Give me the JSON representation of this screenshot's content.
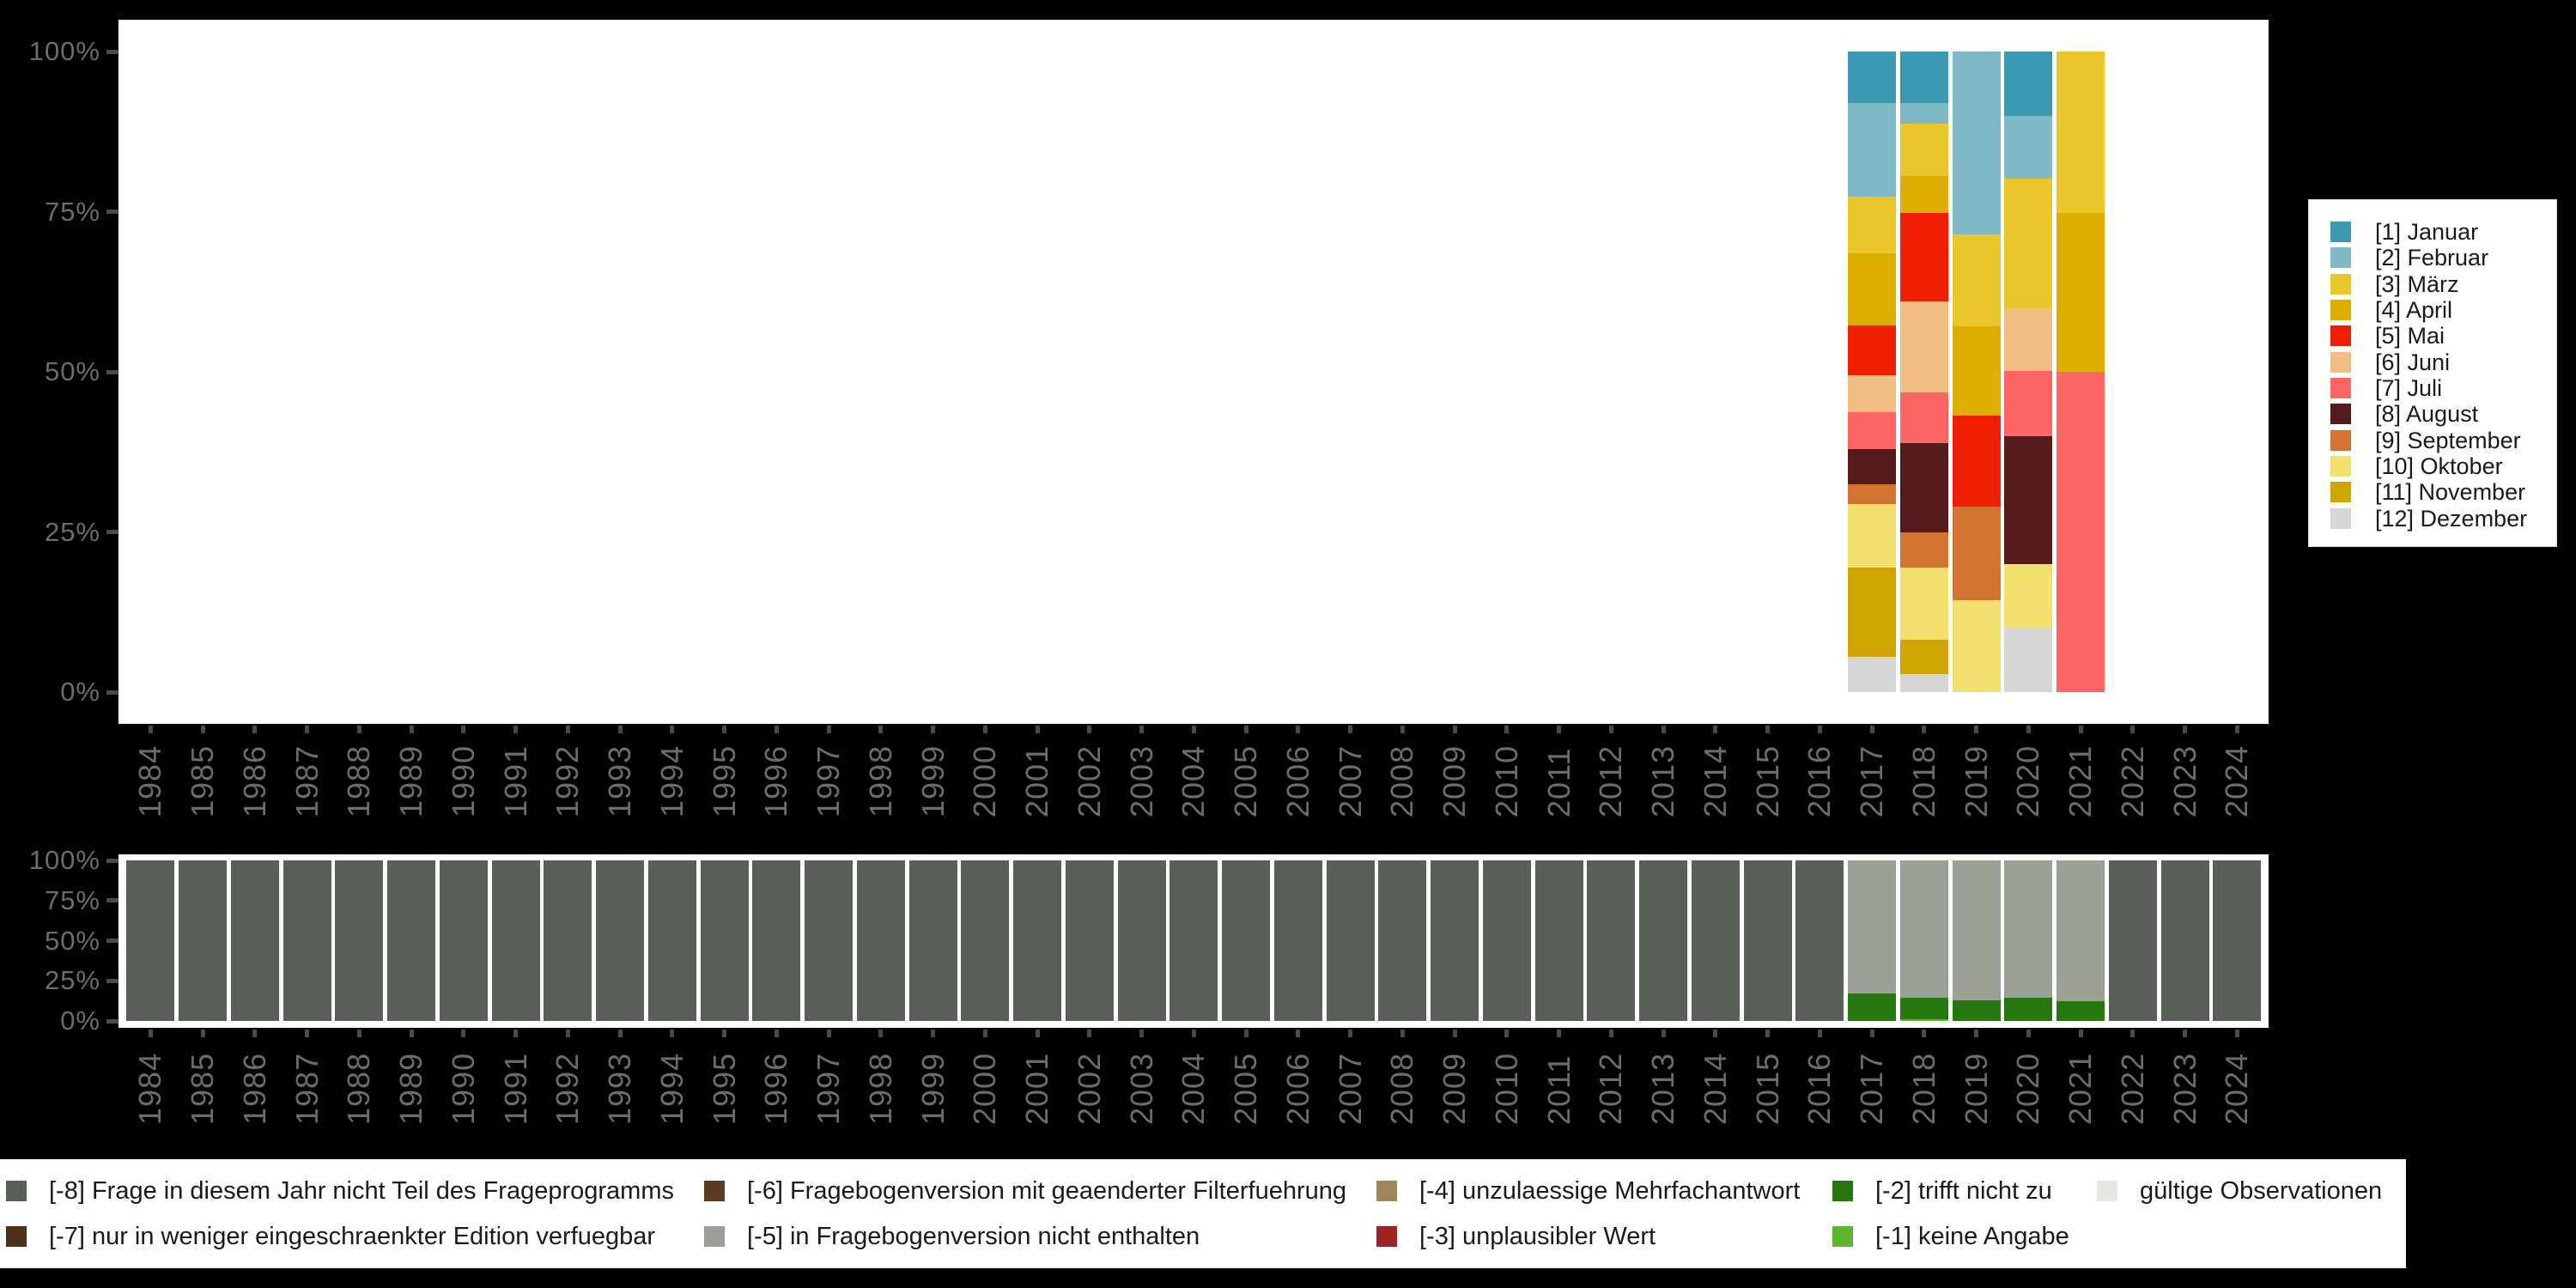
{
  "chart_data": [
    {
      "id": "month-distribution",
      "type": "bar",
      "stacked": true,
      "unit": "percent",
      "title": "",
      "xlabel": "",
      "ylabel": "",
      "ylim": [
        0,
        100
      ],
      "grid": false,
      "y_tick_labels": [
        "0%",
        "25%",
        "50%",
        "75%",
        "100%"
      ],
      "categories": [
        "1984",
        "1985",
        "1986",
        "1987",
        "1988",
        "1989",
        "1990",
        "1991",
        "1992",
        "1993",
        "1994",
        "1995",
        "1996",
        "1997",
        "1998",
        "1999",
        "2000",
        "2001",
        "2002",
        "2003",
        "2004",
        "2005",
        "2006",
        "2007",
        "2008",
        "2009",
        "2010",
        "2011",
        "2012",
        "2013",
        "2014",
        "2015",
        "2016",
        "2017",
        "2018",
        "2019",
        "2020",
        "2021",
        "2022",
        "2023",
        "2024"
      ],
      "legend_position": "right",
      "legend": [
        {
          "label": "[1] Januar",
          "color": "#3B99B2"
        },
        {
          "label": "[2] Februar",
          "color": "#7FB9C7"
        },
        {
          "label": "[3] März",
          "color": "#E8C62C"
        },
        {
          "label": "[4] April",
          "color": "#DDAE00"
        },
        {
          "label": "[5] Mai",
          "color": "#F01E00"
        },
        {
          "label": "[6] Juni",
          "color": "#F0BD82"
        },
        {
          "label": "[7] Juli",
          "color": "#FE6663"
        },
        {
          "label": "[8] August",
          "color": "#551A1C"
        },
        {
          "label": "[9] September",
          "color": "#D27430"
        },
        {
          "label": "[10] Oktober",
          "color": "#F2E06E"
        },
        {
          "label": "[11] November",
          "color": "#CFA600"
        },
        {
          "label": "[12] Dezember",
          "color": "#D5D5D5"
        }
      ],
      "bars": [
        {
          "year": "2017",
          "segments": [
            [
              "[1] Januar",
              8.0
            ],
            [
              "[2] Februar",
              14.7
            ],
            [
              "[3] März",
              8.8
            ],
            [
              "[4] April",
              11.3
            ],
            [
              "[5] Mai",
              7.7
            ],
            [
              "[6] Juni",
              5.8
            ],
            [
              "[7] Juli",
              5.8
            ],
            [
              "[8] August",
              5.4
            ],
            [
              "[9] September",
              3.1
            ],
            [
              "[10] Oktober",
              10.0
            ],
            [
              "[11] November",
              13.9
            ],
            [
              "[12] Dezember",
              5.5
            ]
          ]
        },
        {
          "year": "2018",
          "segments": [
            [
              "[1] Januar",
              8.1
            ],
            [
              "[2] Februar",
              3.2
            ],
            [
              "[3] März",
              8.1
            ],
            [
              "[4] April",
              5.8
            ],
            [
              "[5] Mai",
              13.8
            ],
            [
              "[6] Juni",
              14.2
            ],
            [
              "[7] Juli",
              7.9
            ],
            [
              "[8] August",
              14.0
            ],
            [
              "[9] September",
              5.4
            ],
            [
              "[10] Oktober",
              11.3
            ],
            [
              "[11] November",
              5.4
            ],
            [
              "[12] Dezember",
              2.8
            ]
          ]
        },
        {
          "year": "2019",
          "segments": [
            [
              "[2] Februar",
              28.5
            ],
            [
              "[3] März",
              14.4
            ],
            [
              "[4] April",
              14.0
            ],
            [
              "[5] Mai",
              14.2
            ],
            [
              "[9] September",
              14.5
            ],
            [
              "[10] Oktober",
              14.4
            ]
          ]
        },
        {
          "year": "2020",
          "segments": [
            [
              "[1] Januar",
              10.1
            ],
            [
              "[2] Februar",
              9.8
            ],
            [
              "[3] März",
              20.2
            ],
            [
              "[6] Juni",
              9.8
            ],
            [
              "[7] Juli",
              10.1
            ],
            [
              "[8] August",
              20.0
            ],
            [
              "[10] Oktober",
              10.1
            ],
            [
              "[12] Dezember",
              9.9
            ]
          ]
        },
        {
          "year": "2021",
          "segments": [
            [
              "[3] März",
              25.2
            ],
            [
              "[4] April",
              24.8
            ],
            [
              "[7] Juli",
              50.0
            ]
          ]
        }
      ]
    },
    {
      "id": "missing-codes",
      "type": "bar",
      "stacked": true,
      "unit": "percent",
      "title": "",
      "xlabel": "",
      "ylabel": "",
      "ylim": [
        0,
        100
      ],
      "grid": false,
      "y_tick_labels": [
        "0%",
        "25%",
        "50%",
        "75%",
        "100%"
      ],
      "categories": [
        "1984",
        "1985",
        "1986",
        "1987",
        "1988",
        "1989",
        "1990",
        "1991",
        "1992",
        "1993",
        "1994",
        "1995",
        "1996",
        "1997",
        "1998",
        "1999",
        "2000",
        "2001",
        "2002",
        "2003",
        "2004",
        "2005",
        "2006",
        "2007",
        "2008",
        "2009",
        "2010",
        "2011",
        "2012",
        "2013",
        "2014",
        "2015",
        "2016",
        "2017",
        "2018",
        "2019",
        "2020",
        "2021",
        "2022",
        "2023",
        "2024"
      ],
      "legend_position": "bottom",
      "legend": [
        {
          "row": 0,
          "col": 0,
          "code": "[-8]",
          "label": "[-8] Frage in diesem Jahr nicht Teil des Frageprogramms",
          "color": "#596058"
        },
        {
          "row": 1,
          "col": 0,
          "code": "[-7]",
          "label": "[-7] nur in weniger eingeschraenkter Edition verfuegbar",
          "color": "#4D3118"
        },
        {
          "row": 0,
          "col": 1,
          "code": "[-6]",
          "label": "[-6] Fragebogenversion mit geaenderter Filterfuehrung",
          "color": "#5D3B20"
        },
        {
          "row": 1,
          "col": 1,
          "code": "[-5]",
          "label": "[-5] in Fragebogenversion nicht enthalten",
          "color": "#9AA096"
        },
        {
          "row": 0,
          "col": 2,
          "code": "[-4]",
          "label": "[-4] unzulaessige Mehrfachantwort",
          "color": "#A1855A"
        },
        {
          "row": 1,
          "col": 2,
          "code": "[-3]",
          "label": "[-3] unplausibler Wert",
          "color": "#A32020"
        },
        {
          "row": 0,
          "col": 3,
          "code": "[-2]",
          "label": "[-2] trifft nicht zu",
          "color": "#27770F"
        },
        {
          "row": 1,
          "col": 3,
          "code": "[-1]",
          "label": "[-1] keine Angabe",
          "color": "#5CB62F"
        },
        {
          "row": 0,
          "col": 4,
          "code": "valid",
          "label": "gültige Observationen",
          "color": "#E4E8E0"
        }
      ],
      "bars": [
        {
          "year": "1984",
          "segments": [
            [
              "[-8]",
              100
            ]
          ]
        },
        {
          "year": "1985",
          "segments": [
            [
              "[-8]",
              100
            ]
          ]
        },
        {
          "year": "1986",
          "segments": [
            [
              "[-8]",
              100
            ]
          ]
        },
        {
          "year": "1987",
          "segments": [
            [
              "[-8]",
              100
            ]
          ]
        },
        {
          "year": "1988",
          "segments": [
            [
              "[-8]",
              100
            ]
          ]
        },
        {
          "year": "1989",
          "segments": [
            [
              "[-8]",
              100
            ]
          ]
        },
        {
          "year": "1990",
          "segments": [
            [
              "[-8]",
              100
            ]
          ]
        },
        {
          "year": "1991",
          "segments": [
            [
              "[-8]",
              100
            ]
          ]
        },
        {
          "year": "1992",
          "segments": [
            [
              "[-8]",
              100
            ]
          ]
        },
        {
          "year": "1993",
          "segments": [
            [
              "[-8]",
              100
            ]
          ]
        },
        {
          "year": "1994",
          "segments": [
            [
              "[-8]",
              100
            ]
          ]
        },
        {
          "year": "1995",
          "segments": [
            [
              "[-8]",
              100
            ]
          ]
        },
        {
          "year": "1996",
          "segments": [
            [
              "[-8]",
              100
            ]
          ]
        },
        {
          "year": "1997",
          "segments": [
            [
              "[-8]",
              100
            ]
          ]
        },
        {
          "year": "1998",
          "segments": [
            [
              "[-8]",
              100
            ]
          ]
        },
        {
          "year": "1999",
          "segments": [
            [
              "[-8]",
              100
            ]
          ]
        },
        {
          "year": "2000",
          "segments": [
            [
              "[-8]",
              100
            ]
          ]
        },
        {
          "year": "2001",
          "segments": [
            [
              "[-8]",
              100
            ]
          ]
        },
        {
          "year": "2002",
          "segments": [
            [
              "[-8]",
              100
            ]
          ]
        },
        {
          "year": "2003",
          "segments": [
            [
              "[-8]",
              100
            ]
          ]
        },
        {
          "year": "2004",
          "segments": [
            [
              "[-8]",
              100
            ]
          ]
        },
        {
          "year": "2005",
          "segments": [
            [
              "[-8]",
              100
            ]
          ]
        },
        {
          "year": "2006",
          "segments": [
            [
              "[-8]",
              100
            ]
          ]
        },
        {
          "year": "2007",
          "segments": [
            [
              "[-8]",
              100
            ]
          ]
        },
        {
          "year": "2008",
          "segments": [
            [
              "[-8]",
              100
            ]
          ]
        },
        {
          "year": "2009",
          "segments": [
            [
              "[-8]",
              100
            ]
          ]
        },
        {
          "year": "2010",
          "segments": [
            [
              "[-8]",
              100
            ]
          ]
        },
        {
          "year": "2011",
          "segments": [
            [
              "[-8]",
              100
            ]
          ]
        },
        {
          "year": "2012",
          "segments": [
            [
              "[-8]",
              100
            ]
          ]
        },
        {
          "year": "2013",
          "segments": [
            [
              "[-8]",
              100
            ]
          ]
        },
        {
          "year": "2014",
          "segments": [
            [
              "[-8]",
              100
            ]
          ]
        },
        {
          "year": "2015",
          "segments": [
            [
              "[-8]",
              100
            ]
          ]
        },
        {
          "year": "2016",
          "segments": [
            [
              "[-8]",
              100
            ]
          ]
        },
        {
          "year": "2017",
          "segments": [
            [
              "[-5]",
              82.9
            ],
            [
              "[-2]",
              17.1
            ]
          ]
        },
        {
          "year": "2018",
          "segments": [
            [
              "[-5]",
              85.6
            ],
            [
              "[-2]",
              13.1
            ],
            [
              "[-1]",
              1.3
            ]
          ]
        },
        {
          "year": "2019",
          "segments": [
            [
              "[-5]",
              87.2
            ],
            [
              "[-2]",
              12.8
            ]
          ]
        },
        {
          "year": "2020",
          "segments": [
            [
              "[-5]",
              85.6
            ],
            [
              "[-2]",
              14.4
            ]
          ]
        },
        {
          "year": "2021",
          "segments": [
            [
              "[-5]",
              87.9
            ],
            [
              "[-2]",
              12.1
            ]
          ]
        },
        {
          "year": "2022",
          "segments": [
            [
              "[-8]",
              100
            ]
          ]
        },
        {
          "year": "2023",
          "segments": [
            [
              "[-8]",
              100
            ]
          ]
        },
        {
          "year": "2024",
          "segments": [
            [
              "[-8]",
              100
            ]
          ]
        }
      ]
    }
  ]
}
